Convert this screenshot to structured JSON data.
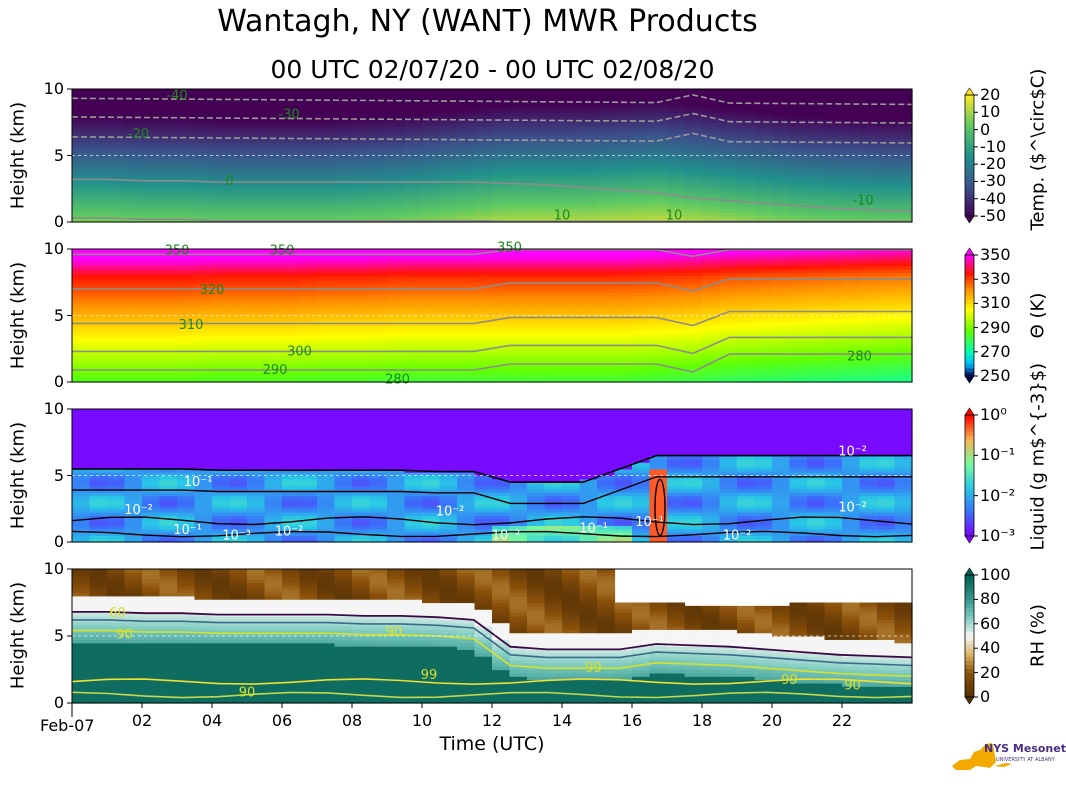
{
  "chart_data": [
    {
      "type": "heatmap",
      "title": "Wantagh, NY (WANT) MWR Products",
      "subtitle": "00 UTC 02/07/20 - 00 UTC 02/08/20",
      "ylabel": "Height (km)",
      "ylim": [
        0,
        10
      ],
      "yticks": [
        "0",
        "5",
        "10"
      ],
      "colorbar_label": "Temp. ($^\\circ$C)",
      "colorbar_ticks": [
        "20",
        "10",
        "0",
        "-10",
        "-20",
        "-30",
        "-40",
        "-50"
      ],
      "colorbar_range": [
        -50,
        20
      ],
      "contour_labels": [
        "-40",
        "-30",
        "-20",
        "0",
        "10",
        "10",
        "-10"
      ],
      "surface_values": [
        6,
        6,
        5,
        5,
        4,
        4,
        4,
        4,
        5,
        6,
        8,
        10,
        12,
        12,
        12,
        13,
        14,
        12,
        10,
        8,
        6,
        5,
        4,
        4
      ],
      "zero_height_km": [
        3.2,
        3.2,
        3.1,
        3.1,
        3.0,
        3.0,
        3.0,
        3.0,
        3.0,
        3.0,
        3.0,
        3.0,
        2.9,
        2.8,
        2.6,
        2.4,
        2.2,
        1.8,
        1.6,
        1.4,
        1.2,
        1.0,
        0.9,
        0.8
      ]
    },
    {
      "type": "heatmap",
      "ylabel": "Height (km)",
      "ylim": [
        0,
        10
      ],
      "yticks": [
        "0",
        "5",
        "10"
      ],
      "colorbar_label": "Θ (K)",
      "colorbar_ticks": [
        "350",
        "330",
        "310",
        "290",
        "270",
        "250"
      ],
      "colorbar_range": [
        250,
        360
      ],
      "contour_labels": [
        "350",
        "350",
        "350",
        "320",
        "310",
        "300",
        "290",
        "280",
        "280"
      ],
      "surface_values": [
        288,
        288,
        288,
        288,
        287,
        287,
        287,
        286,
        286,
        285,
        285,
        285,
        285,
        285,
        285,
        285,
        284,
        283,
        281,
        280,
        279,
        278,
        277,
        276
      ]
    },
    {
      "type": "heatmap",
      "ylabel": "Height (km)",
      "ylim": [
        0,
        10
      ],
      "yticks": [
        "0",
        "5",
        "10"
      ],
      "colorbar_label": "Liquid (g m$^{-3}$)",
      "colorbar_ticks": [
        "10⁰",
        "10⁻¹",
        "10⁻²",
        "10⁻³"
      ],
      "colorbar_scale": "log",
      "colorbar_range": [
        0.001,
        1
      ],
      "contour_labels": [
        "10⁻¹",
        "10⁻²",
        "10⁻¹",
        "10⁻³",
        "10⁻²",
        "10⁻²",
        "10⁻²",
        "10⁻¹",
        "10⁻¹",
        "10⁻²",
        "10⁻²",
        "10⁻²"
      ],
      "cloud_top_km": [
        5.5,
        5.5,
        5.5,
        5.5,
        5.4,
        5.4,
        5.4,
        5.4,
        5.4,
        5.4,
        5.3,
        5.3,
        4.5,
        4.5,
        4.5,
        5.5,
        6.5,
        6.5,
        6.5,
        6.5,
        6.5,
        6.5,
        6.5,
        6.5
      ]
    },
    {
      "type": "heatmap",
      "ylabel": "Height (km)",
      "ylim": [
        0,
        10
      ],
      "yticks": [
        "0",
        "5",
        "10"
      ],
      "colorbar_label": "RH (%)",
      "colorbar_ticks": [
        "100",
        "80",
        "60",
        "40",
        "20",
        "0"
      ],
      "colorbar_range": [
        0,
        100
      ],
      "contour_labels": [
        "60",
        "90",
        "90",
        "99",
        "99",
        "99",
        "90",
        "90"
      ],
      "moist_top_km": [
        6.8,
        6.8,
        6.7,
        6.7,
        6.6,
        6.6,
        6.6,
        6.6,
        6.5,
        6.5,
        6.4,
        6.2,
        4.2,
        4.0,
        4.0,
        4.0,
        4.4,
        4.3,
        4.2,
        4.0,
        3.8,
        3.6,
        3.5,
        3.4
      ],
      "xlabel": "Time (UTC)",
      "date_label": "Feb-07",
      "xticks": [
        "02",
        "04",
        "06",
        "08",
        "10",
        "12",
        "14",
        "16",
        "18",
        "20",
        "22"
      ],
      "xlim_hours": [
        0,
        24
      ]
    }
  ],
  "logo": {
    "text": "NYS Mesonet",
    "subtext": "UNIVERSITY AT ALBANY"
  }
}
